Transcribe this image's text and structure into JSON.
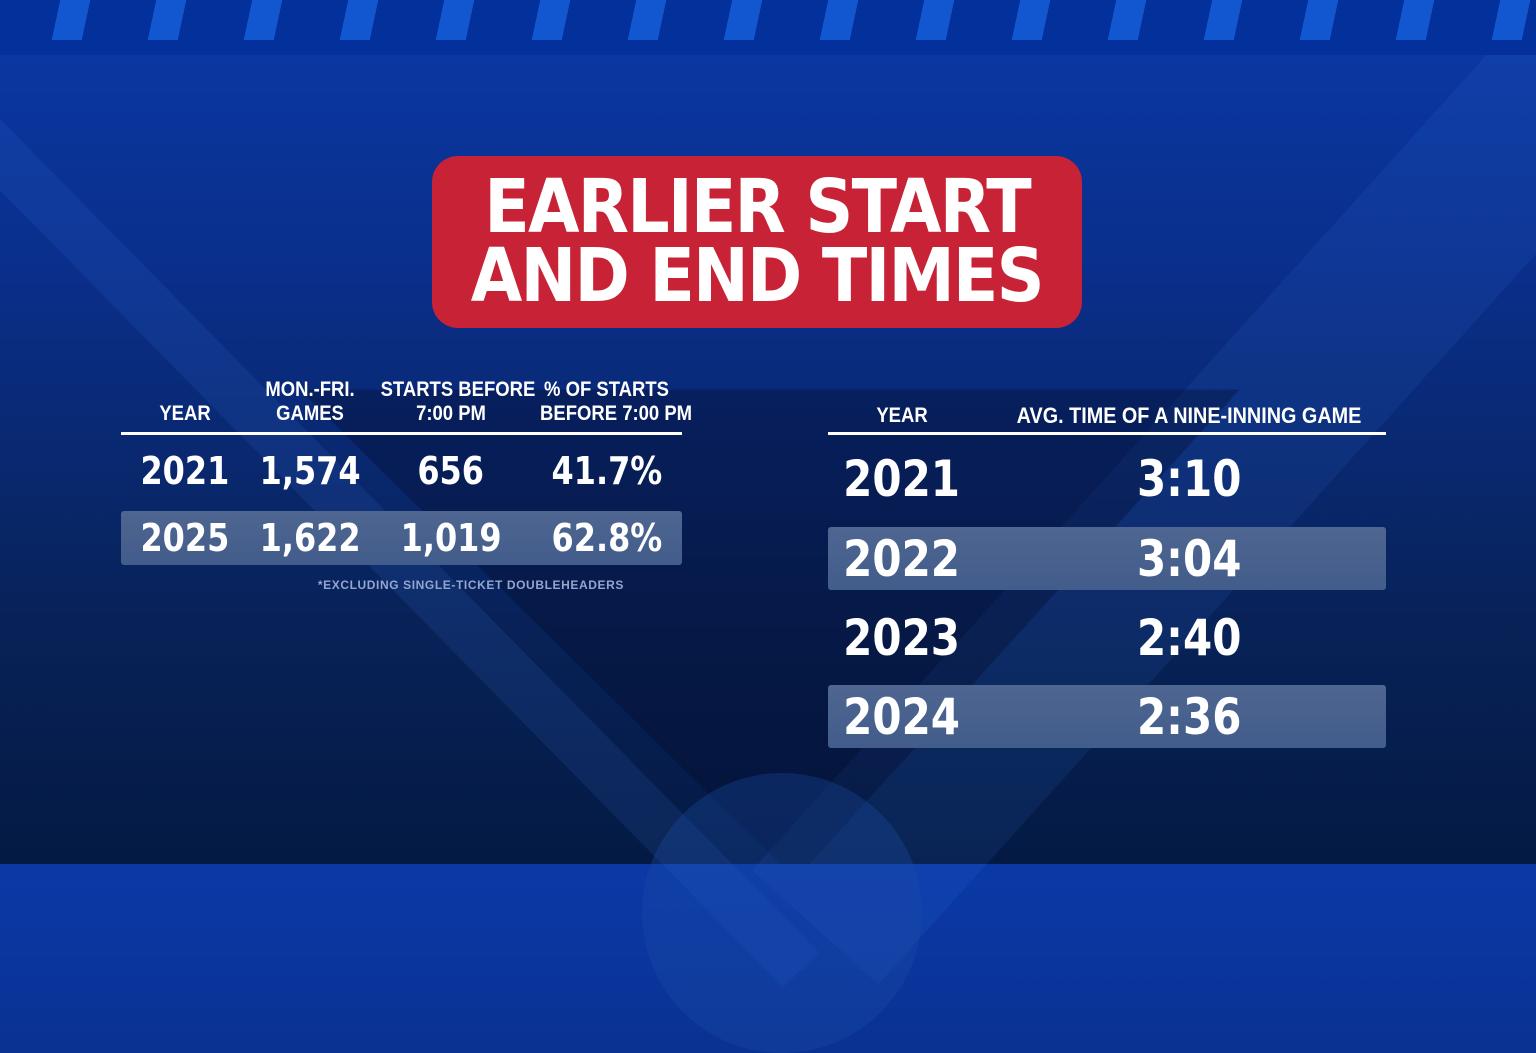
{
  "title": {
    "line1": "EARLIER START",
    "line2": "AND END TIMES"
  },
  "left_table": {
    "headers": [
      {
        "line1": "YEAR",
        "line2": ""
      },
      {
        "line1": "MON.-FRI.",
        "line2": "GAMES"
      },
      {
        "line1": "STARTS BEFORE",
        "line2": "7:00 PM"
      },
      {
        "line1": "% OF STARTS",
        "line2": "BEFORE 7:00 PM"
      }
    ],
    "rows": [
      {
        "year": "2021",
        "games": "1,574",
        "starts": "656",
        "pct": "41.7%"
      },
      {
        "year": "2025",
        "games": "1,622",
        "starts": "1,019",
        "pct": "62.8%"
      }
    ],
    "footnote": "*EXCLUDING SINGLE-TICKET DOUBLEHEADERS"
  },
  "right_table": {
    "headers": [
      {
        "line1": "YEAR"
      },
      {
        "line1": "AVG. TIME OF A NINE-INNING GAME"
      }
    ],
    "rows": [
      {
        "year": "2021",
        "time": "3:10"
      },
      {
        "year": "2022",
        "time": "3:04"
      },
      {
        "year": "2023",
        "time": "2:40"
      },
      {
        "year": "2024",
        "time": "2:36"
      }
    ]
  },
  "colors": {
    "banner_red": "#C82236",
    "highlight_band": "#46608E",
    "top_bar": "#03309B",
    "stripe": "#1257CF",
    "background_top": "#0A39A6",
    "background_bottom": "#041A44",
    "footnote_text": "#93A6CE",
    "text": "#FFFFFF"
  },
  "chart_data": [
    {
      "type": "table",
      "title": "EARLIER START AND END TIMES",
      "columns": [
        "YEAR",
        "MON.-FRI. GAMES",
        "STARTS BEFORE 7:00 PM",
        "% OF STARTS BEFORE 7:00 PM"
      ],
      "rows": [
        [
          "2021",
          "1,574",
          "656",
          "41.7%"
        ],
        [
          "2025",
          "1,622",
          "1,019",
          "62.8%"
        ]
      ],
      "highlighted_rows": [
        "2025"
      ],
      "footnote": "*EXCLUDING SINGLE-TICKET DOUBLEHEADERS"
    },
    {
      "type": "table",
      "title": "EARLIER START AND END TIMES",
      "columns": [
        "YEAR",
        "AVG. TIME OF A NINE-INNING GAME"
      ],
      "rows": [
        [
          "2021",
          "3:10"
        ],
        [
          "2022",
          "3:04"
        ],
        [
          "2023",
          "2:40"
        ],
        [
          "2024",
          "2:36"
        ]
      ],
      "highlighted_rows": [
        "2022",
        "2024"
      ]
    }
  ]
}
